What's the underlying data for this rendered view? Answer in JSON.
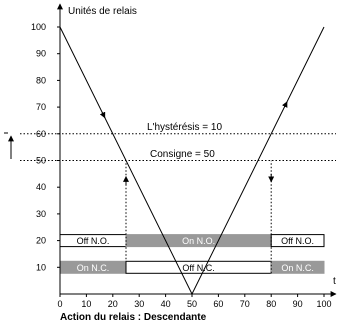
{
  "chart_data": {
    "type": "line",
    "ylabel": "Unités de relais",
    "xlabel": "t",
    "caption": "Action du relais : Descendante",
    "xlim": [
      0,
      100
    ],
    "ylim": [
      0,
      100
    ],
    "x_ticks": [
      0,
      10,
      20,
      30,
      40,
      50,
      60,
      70,
      80,
      90,
      100
    ],
    "y_ticks": [
      10,
      20,
      30,
      40,
      50,
      60,
      70,
      80,
      90,
      100
    ],
    "series": [
      {
        "values": [
          [
            0,
            100
          ],
          [
            50,
            0
          ],
          [
            100,
            100
          ]
        ]
      }
    ],
    "reference_lines": [
      {
        "y": 60,
        "label": "L'hystérésis = 10"
      },
      {
        "y": 50,
        "label": "Consigne = 50"
      }
    ],
    "switch_points": [
      25,
      80
    ],
    "relay_rows": [
      {
        "y": 20,
        "segments": [
          {
            "from": 0,
            "to": 25,
            "label": "Off N.O.",
            "filled": false
          },
          {
            "from": 25,
            "to": 80,
            "label": "On N.O.",
            "filled": true
          },
          {
            "from": 80,
            "to": 100,
            "label": "Off N.O.",
            "filled": false
          }
        ]
      },
      {
        "y": 10,
        "segments": [
          {
            "from": 0,
            "to": 25,
            "label": "On N.C.",
            "filled": true
          },
          {
            "from": 25,
            "to": 80,
            "label": "Off N.C.",
            "filled": false
          },
          {
            "from": 80,
            "to": 100,
            "label": "On N.C.",
            "filled": true
          }
        ]
      }
    ],
    "colors": {
      "line": "#000000",
      "filled_segment": "#999999",
      "filled_text": "#ffffff"
    }
  }
}
